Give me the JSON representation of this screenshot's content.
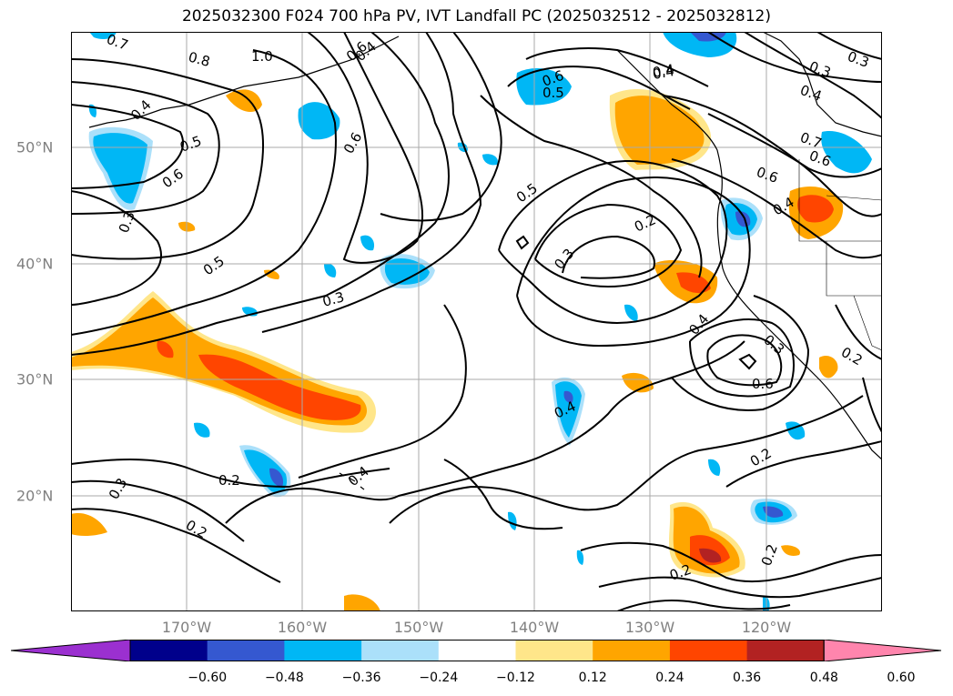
{
  "title": "2025032300 F024 700 hPa PV, IVT Landfall PC (2025032512 - 2025032812)",
  "map": {
    "lon_labels": [
      "170°W",
      "160°W",
      "150°W",
      "140°W",
      "130°W",
      "120°W"
    ],
    "lat_labels": [
      "50°N",
      "40°N",
      "30°N",
      "20°N"
    ],
    "contour_labels": [
      "0.7",
      "0.8",
      "1.0",
      "0.4",
      "0.5",
      "0.6",
      "0.6",
      "0.5",
      "0.6",
      "0.4",
      "0.3",
      "0.4",
      "0.5",
      "0.2",
      "0.3",
      "0.2",
      "0.4",
      "0.6",
      "0.7",
      "0.3",
      "0.4",
      "0.6",
      "0.5",
      "0.3",
      "0.4",
      "0.6",
      "0.4",
      "0.3",
      "0.2",
      "0.6",
      "0.4",
      "0.2",
      "0.2",
      "0.4",
      "0.3",
      "0.2",
      "0.2",
      "0.3"
    ]
  },
  "colorbar": {
    "tick_labels": [
      "−0.60",
      "−0.48",
      "−0.36",
      "−0.24",
      "−0.12",
      "0.12",
      "0.24",
      "0.36",
      "0.48",
      "0.60"
    ],
    "colors": [
      "#9b30d0",
      "#00008b",
      "#3558d0",
      "#00b7f5",
      "#abe0fa",
      "#ffffff",
      "#ffe68a",
      "#ffa500",
      "#ff4500",
      "#b22222",
      "#ff85ad"
    ]
  }
}
